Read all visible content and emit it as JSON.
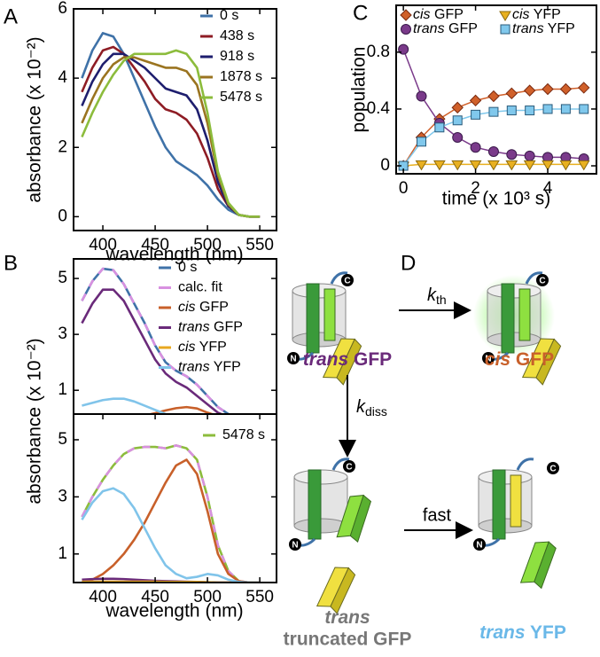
{
  "chart_data": [
    {
      "type": "line",
      "panel": "A",
      "xlabel": "wavelength (nm)",
      "ylabel": "absorbance (x 10⁻²)",
      "x": [
        380,
        390,
        400,
        410,
        420,
        430,
        440,
        450,
        460,
        470,
        480,
        490,
        500,
        510,
        520,
        530,
        540,
        550
      ],
      "xlim": [
        372,
        566
      ],
      "xticks": [
        400,
        450,
        500,
        550
      ],
      "ylim": [
        -0.4,
        6
      ],
      "yticks": [
        0,
        2,
        4,
        6
      ],
      "legend": "upper right",
      "series": [
        {
          "name": "0 s",
          "color": "#3f72a8",
          "values": [
            4.0,
            4.8,
            5.3,
            5.2,
            4.7,
            4.0,
            3.3,
            2.6,
            2.0,
            1.6,
            1.4,
            1.2,
            0.9,
            0.5,
            0.2,
            0.05,
            0,
            0
          ]
        },
        {
          "name": "438 s",
          "color": "#8e1c24",
          "values": [
            3.6,
            4.3,
            4.8,
            4.9,
            4.7,
            4.3,
            3.9,
            3.4,
            3.1,
            3.0,
            2.8,
            2.4,
            1.7,
            0.8,
            0.3,
            0.05,
            0,
            0
          ]
        },
        {
          "name": "918 s",
          "color": "#1e1e6e",
          "values": [
            3.2,
            3.9,
            4.4,
            4.7,
            4.7,
            4.5,
            4.3,
            4.0,
            3.7,
            3.6,
            3.5,
            3.1,
            2.2,
            1.0,
            0.3,
            0.05,
            0,
            0
          ]
        },
        {
          "name": "1878 s",
          "color": "#9a7420",
          "values": [
            2.7,
            3.4,
            4.0,
            4.4,
            4.6,
            4.6,
            4.5,
            4.4,
            4.3,
            4.3,
            4.2,
            3.8,
            2.7,
            1.2,
            0.35,
            0.05,
            0,
            0
          ]
        },
        {
          "name": "5478 s",
          "color": "#8cbc3c",
          "values": [
            2.3,
            3.0,
            3.6,
            4.1,
            4.5,
            4.7,
            4.7,
            4.7,
            4.7,
            4.8,
            4.7,
            4.3,
            3.0,
            1.3,
            0.4,
            0.05,
            0,
            0
          ]
        }
      ]
    },
    {
      "type": "line",
      "panel": "B",
      "ylabel": "absorbance (x 10⁻²)",
      "x": [
        380,
        390,
        400,
        410,
        420,
        430,
        440,
        450,
        460,
        470,
        480,
        490,
        500,
        510,
        520,
        530,
        540,
        550
      ],
      "xlim": [
        372,
        566
      ],
      "ylim": [
        0.15,
        5.7
      ],
      "yticks": [
        1,
        3,
        5
      ],
      "legend": "upper right",
      "series": [
        {
          "name": "0 s",
          "color": "#3f72a8",
          "values": [
            4.2,
            4.9,
            5.35,
            5.3,
            4.8,
            4.1,
            3.4,
            2.6,
            2.0,
            1.7,
            1.5,
            1.2,
            0.8,
            0.4,
            0.15,
            0.03,
            0,
            0
          ]
        },
        {
          "name": "calc. fit",
          "color": "#d890e0",
          "style": "dashed",
          "values": [
            4.2,
            4.9,
            5.35,
            5.3,
            4.8,
            4.1,
            3.4,
            2.6,
            2.0,
            1.7,
            1.5,
            1.2,
            0.8,
            0.4,
            0.15,
            0.03,
            0,
            0
          ]
        },
        {
          "name": "cis GFP",
          "color": "#c8602a",
          "name_style": "italic-first-word",
          "values": [
            0,
            0,
            0,
            0,
            0.02,
            0.05,
            0.1,
            0.18,
            0.28,
            0.36,
            0.4,
            0.35,
            0.2,
            0.08,
            0.02,
            0,
            0,
            0
          ]
        },
        {
          "name": "trans GFP",
          "color": "#6a2a7a",
          "name_style": "italic-first-word",
          "values": [
            3.4,
            4.1,
            4.6,
            4.6,
            4.2,
            3.5,
            2.8,
            2.1,
            1.6,
            1.3,
            1.1,
            0.8,
            0.5,
            0.2,
            0.05,
            0,
            0,
            0
          ]
        },
        {
          "name": "cis YFP",
          "color": "#e8a820",
          "name_style": "italic-first-word",
          "values": [
            0.02,
            0.02,
            0.02,
            0.02,
            0.02,
            0.02,
            0.02,
            0.02,
            0.02,
            0.02,
            0.02,
            0.02,
            0.01,
            0,
            0,
            0,
            0,
            0
          ]
        },
        {
          "name": "trans YFP",
          "color": "#80c4ea",
          "name_style": "italic-first-word",
          "values": [
            0.45,
            0.55,
            0.65,
            0.7,
            0.7,
            0.6,
            0.45,
            0.3,
            0.15,
            0.08,
            0.03,
            0.01,
            0,
            0,
            0,
            0,
            0,
            0
          ]
        }
      ]
    },
    {
      "type": "line",
      "xlabel": "wavelength (nm)",
      "x": [
        380,
        390,
        400,
        410,
        420,
        430,
        440,
        450,
        460,
        470,
        480,
        490,
        500,
        510,
        520,
        530,
        540,
        550
      ],
      "xlim": [
        372,
        566
      ],
      "xticks": [
        400,
        450,
        500,
        550
      ],
      "ylim": [
        0,
        5.9
      ],
      "yticks": [
        1,
        3,
        5
      ],
      "legend": "upper right",
      "series": [
        {
          "name": "5478 s",
          "color": "#8cbc3c",
          "values": [
            2.3,
            3.0,
            3.6,
            4.1,
            4.5,
            4.7,
            4.75,
            4.75,
            4.7,
            4.8,
            4.7,
            4.3,
            3.0,
            1.3,
            0.4,
            0.05,
            0,
            0
          ]
        },
        {
          "color": "#d890e0",
          "style": "dashed",
          "values": [
            2.3,
            3.0,
            3.6,
            4.1,
            4.5,
            4.7,
            4.75,
            4.75,
            4.7,
            4.8,
            4.7,
            4.3,
            3.0,
            1.3,
            0.4,
            0.05,
            0,
            0
          ]
        },
        {
          "color": "#c8602a",
          "values": [
            0,
            0.1,
            0.3,
            0.6,
            1.0,
            1.5,
            2.1,
            2.8,
            3.5,
            4.1,
            4.3,
            3.8,
            2.5,
            1.0,
            0.3,
            0.05,
            0,
            0
          ]
        },
        {
          "color": "#6a2a7a",
          "values": [
            0.1,
            0.12,
            0.13,
            0.13,
            0.12,
            0.1,
            0.08,
            0.06,
            0.05,
            0.04,
            0.03,
            0.02,
            0.01,
            0,
            0,
            0,
            0,
            0
          ]
        },
        {
          "color": "#e8a820",
          "values": [
            0.03,
            0.03,
            0.03,
            0.03,
            0.03,
            0.03,
            0.03,
            0.03,
            0.02,
            0.02,
            0.02,
            0.02,
            0.01,
            0,
            0,
            0,
            0,
            0
          ]
        },
        {
          "color": "#80c4ea",
          "values": [
            2.2,
            2.8,
            3.2,
            3.3,
            3.1,
            2.6,
            1.9,
            1.2,
            0.6,
            0.3,
            0.15,
            0.2,
            0.3,
            0.25,
            0.1,
            0.02,
            0,
            0
          ]
        }
      ]
    },
    {
      "type": "line",
      "panel": "C",
      "xlabel": "time (x 10³ s)",
      "ylabel": "population",
      "x": [
        0,
        0.5,
        1,
        1.5,
        2,
        2.5,
        3,
        3.5,
        4,
        4.5,
        5
      ],
      "xlim": [
        -0.2,
        5.35
      ],
      "xticks": [
        0,
        2,
        4
      ],
      "ylim": [
        -0.056,
        1.13
      ],
      "yticks": [
        0,
        0.4,
        0.8
      ],
      "legend": "upper right",
      "series": [
        {
          "name": "cis GFP",
          "color": "#d0602a",
          "marker": "diamond",
          "name_style": "italic-first-word",
          "values": [
            0,
            0.2,
            0.33,
            0.41,
            0.46,
            0.49,
            0.51,
            0.53,
            0.54,
            0.54,
            0.55
          ]
        },
        {
          "name": "trans GFP",
          "color": "#7a3a8a",
          "marker": "circle",
          "name_style": "italic-first-word",
          "values": [
            0.82,
            0.49,
            0.3,
            0.2,
            0.13,
            0.1,
            0.08,
            0.07,
            0.06,
            0.06,
            0.05
          ]
        },
        {
          "name": "cis YFP",
          "color": "#e8b020",
          "marker": "triangle",
          "name_style": "italic-first-word",
          "values": [
            0,
            0.01,
            0.01,
            0.01,
            0.01,
            0.01,
            0.01,
            0.01,
            0.01,
            0.01,
            0.01
          ]
        },
        {
          "name": "trans YFP",
          "color": "#80c8ec",
          "marker": "square",
          "name_style": "italic-first-word",
          "values": [
            0,
            0.17,
            0.27,
            0.32,
            0.36,
            0.38,
            0.39,
            0.39,
            0.4,
            0.4,
            0.4
          ]
        }
      ]
    }
  ],
  "diagram": {
    "panel": "D",
    "termini": [
      "C",
      "N"
    ],
    "arrows": [
      {
        "symbol": "k",
        "subscript": "th"
      },
      {
        "symbol": "k",
        "subscript": "diss"
      },
      {
        "text": "fast"
      }
    ],
    "states": [
      {
        "text": "trans GFP",
        "color": "#6a2a7a",
        "italic_first_word": true
      },
      {
        "text": "cis GFP",
        "color": "#c8602a",
        "italic_first_word": true
      },
      {
        "text": "trans",
        "color": "#777777",
        "italic_first_word": true
      },
      {
        "text": "truncated GFP",
        "color": "#777777",
        "italic_first_word": false
      },
      {
        "text": "trans YFP",
        "color": "#6ab8e8",
        "italic_first_word": true
      }
    ]
  }
}
